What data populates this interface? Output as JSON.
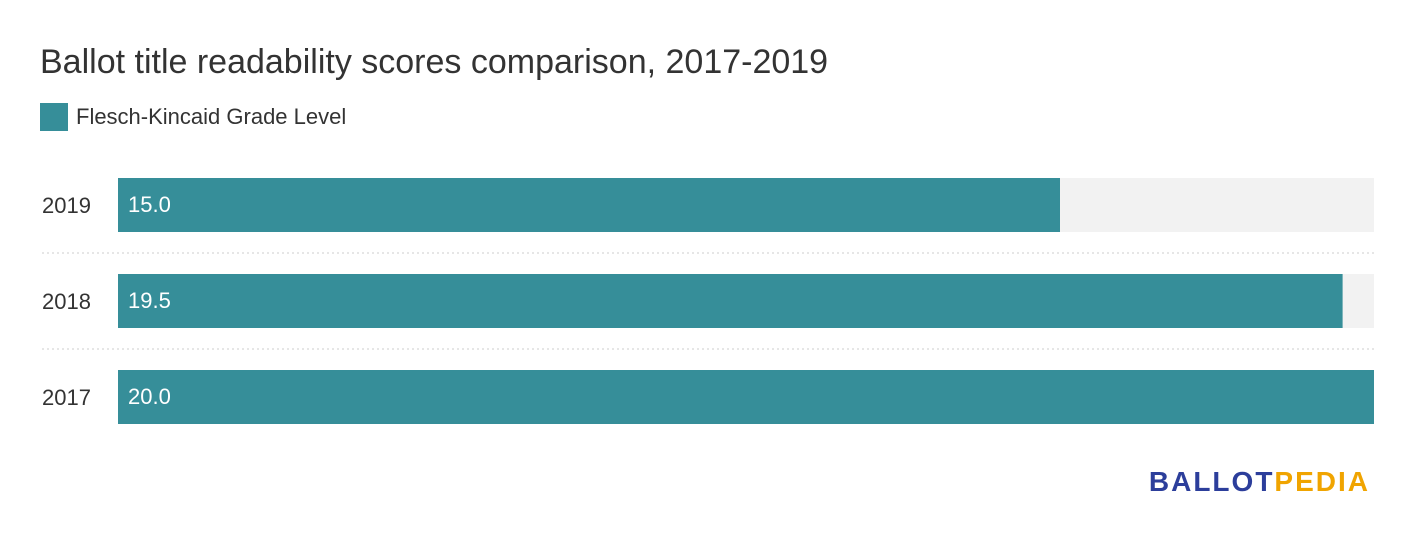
{
  "title": "Ballot title readability scores comparison, 2017-2019",
  "colors": {
    "bar": "#368e99",
    "track": "#f2f2f2",
    "divider": "#cccccc",
    "brand_primary": "#2c3e9b",
    "brand_accent": "#f0a400"
  },
  "brand": {
    "part1": "BALLOT",
    "part2": "PEDIA"
  },
  "chart_data": {
    "type": "bar",
    "orientation": "horizontal",
    "title": "Ballot title readability scores comparison, 2017-2019",
    "categories": [
      "2019",
      "2018",
      "2017"
    ],
    "series": [
      {
        "name": "Flesch-Kincaid Grade Level",
        "values": [
          15.0,
          19.5,
          20.0
        ],
        "labels": [
          "15.0",
          "19.5",
          "20.0"
        ]
      }
    ],
    "xlim": [
      0,
      20
    ],
    "legend": "top-left",
    "grid": false
  }
}
